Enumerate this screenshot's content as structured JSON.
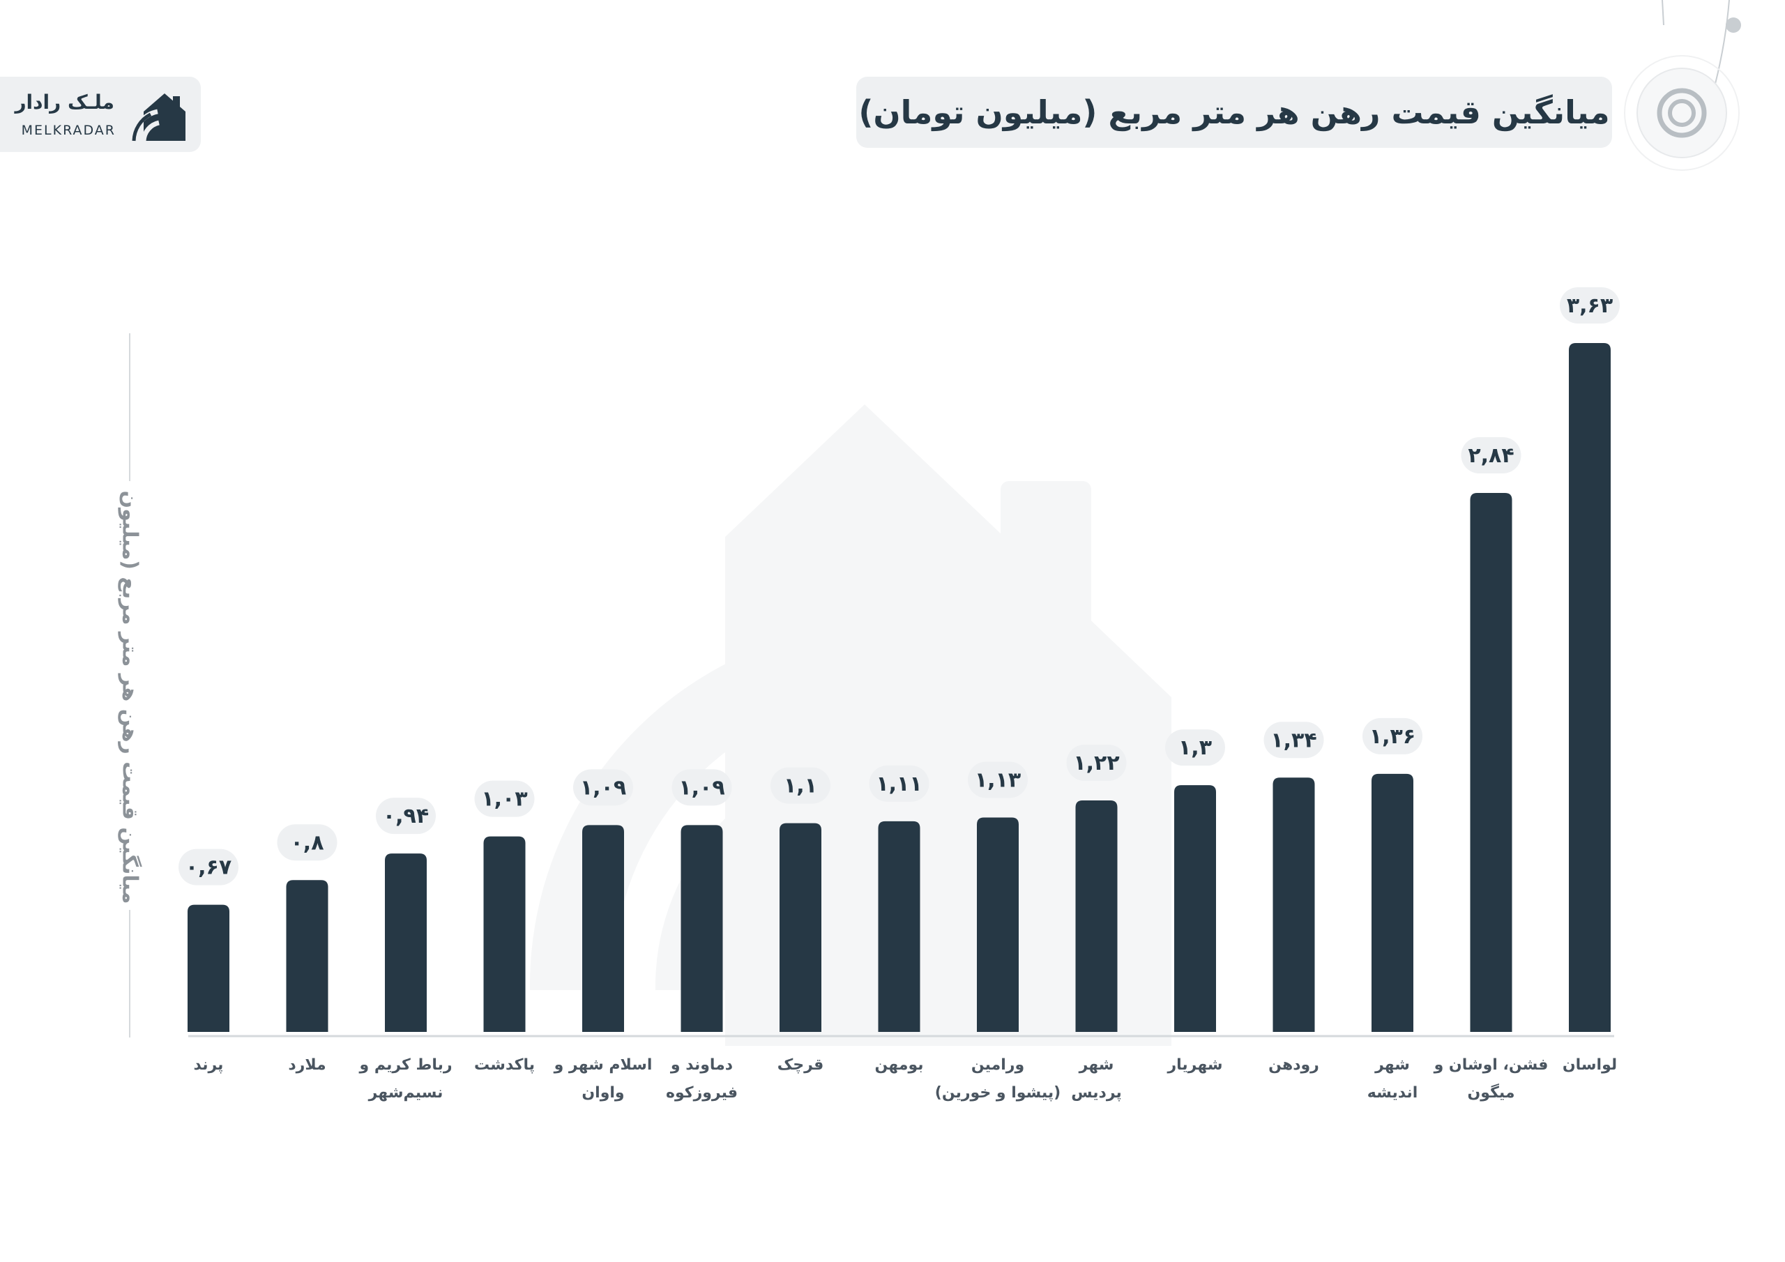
{
  "logo": {
    "name_fa": "ملـک رادار",
    "name_en": "MELKRADAR"
  },
  "icons": {
    "logo": "house-wifi-icon",
    "decoration": "target-rings-icon",
    "watermark": "house-wifi-watermark"
  },
  "colors": {
    "bar": "#263845",
    "pill": "#eef0f2",
    "axis_text": "#4a5560",
    "muted": "#8c9298"
  },
  "chart_data": {
    "type": "bar",
    "title": "میانگین قیمت رهن هر متر مربع (میلیون تومان)",
    "xlabel": "",
    "ylabel": "میانگین قیمت رهن هر متر مربع (میلیون",
    "ylim": [
      0,
      3.63
    ],
    "grid": false,
    "categories": [
      [
        "پرند"
      ],
      [
        "ملارد"
      ],
      [
        "رباط کریم و",
        "نسیم‌شهر"
      ],
      [
        "پاکدشت"
      ],
      [
        "اسلام شهر و",
        "واوان"
      ],
      [
        "دماوند و",
        "فیروزکوه"
      ],
      [
        "قرچک"
      ],
      [
        "بومهن"
      ],
      [
        "ورامین",
        "(پیشوا و خورین)"
      ],
      [
        "شهر",
        "پردیس"
      ],
      [
        "شهریار"
      ],
      [
        "رودهن"
      ],
      [
        "شهر",
        "اندیشه"
      ],
      [
        "فشن، اوشان و",
        "میگون"
      ],
      [
        "لواسان"
      ]
    ],
    "values": [
      0.67,
      0.8,
      0.94,
      1.03,
      1.09,
      1.09,
      1.1,
      1.11,
      1.13,
      1.22,
      1.3,
      1.34,
      1.36,
      2.84,
      3.63
    ],
    "data_labels": [
      "۰,۶۷",
      "۰,۸",
      "۰,۹۴",
      "۱,۰۳",
      "۱,۰۹",
      "۱,۰۹",
      "۱,۱",
      "۱,۱۱",
      "۱,۱۳",
      "۱,۲۲",
      "۱,۳",
      "۱,۳۴",
      "۱,۳۶",
      "۲,۸۴",
      "۳,۶۳"
    ]
  }
}
